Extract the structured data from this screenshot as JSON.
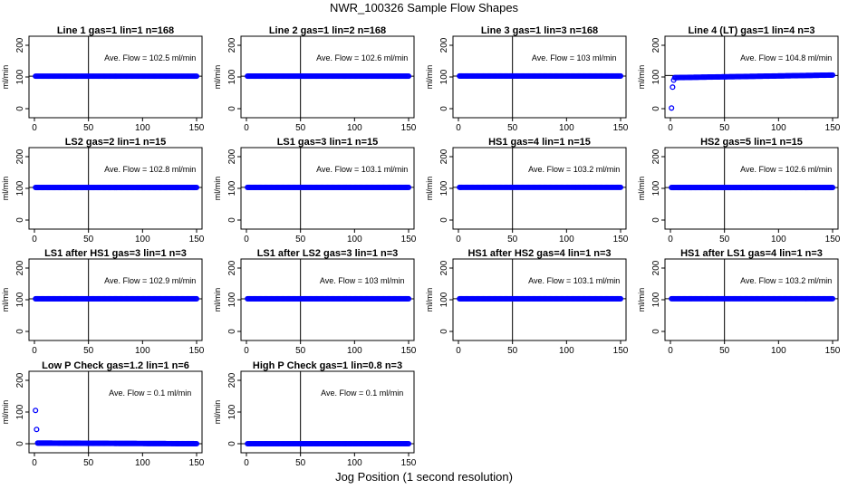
{
  "figure": {
    "title": "NWR_100326  Sample Flow Shapes",
    "xlabel": "Jog Position (1 second resolution)"
  },
  "chart_data": [
    {
      "type": "scatter",
      "title": "Line 1 gas=1 lin=1 n=168",
      "ylabel": "ml/min",
      "annotation": "Ave. Flow =  102.5  ml/min",
      "xlim": [
        0,
        150
      ],
      "ylim": [
        0,
        200
      ],
      "xticks": [
        0,
        50,
        100,
        150
      ],
      "yticks": [
        0,
        100,
        200
      ],
      "vline": 50,
      "hline": 102.5,
      "series": [
        {
          "x": [
            1,
            150
          ],
          "y": [
            102.5,
            102.5
          ],
          "dense_line": true
        }
      ]
    },
    {
      "type": "scatter",
      "title": "Line 2 gas=1 lin=2 n=168",
      "ylabel": "ml/min",
      "annotation": "Ave. Flow =  102.6  ml/min",
      "xlim": [
        0,
        150
      ],
      "ylim": [
        0,
        200
      ],
      "xticks": [
        0,
        50,
        100,
        150
      ],
      "yticks": [
        0,
        100,
        200
      ],
      "vline": 50,
      "hline": 102.6,
      "series": [
        {
          "x": [
            1,
            150
          ],
          "y": [
            102.6,
            102.6
          ],
          "dense_line": true
        }
      ]
    },
    {
      "type": "scatter",
      "title": "Line 3 gas=1 lin=3 n=168",
      "ylabel": "ml/min",
      "annotation": "Ave. Flow =  103  ml/min",
      "xlim": [
        0,
        150
      ],
      "ylim": [
        0,
        200
      ],
      "xticks": [
        0,
        50,
        100,
        150
      ],
      "yticks": [
        0,
        100,
        200
      ],
      "vline": 50,
      "hline": 103,
      "series": [
        {
          "x": [
            1,
            150
          ],
          "y": [
            103,
            103
          ],
          "dense_line": true
        }
      ]
    },
    {
      "type": "scatter",
      "title": "Line 4 (LT) gas=1 lin=4 n=3",
      "ylabel": "ml/min",
      "annotation": "Ave. Flow =  104.8  ml/min",
      "xlim": [
        0,
        150
      ],
      "ylim": [
        0,
        200
      ],
      "xticks": [
        0,
        50,
        100,
        150
      ],
      "yticks": [
        0,
        100,
        200
      ],
      "vline": 50,
      "hline": 104.8,
      "series": [
        {
          "x": [
            1,
            2,
            3,
            4,
            150
          ],
          "y": [
            2,
            68,
            90,
            98,
            106
          ],
          "dense_from": 4
        }
      ]
    },
    {
      "type": "scatter",
      "title": "LS2 gas=2 lin=1 n=15",
      "ylabel": "ml/min",
      "annotation": "Ave. Flow =  102.8  ml/min",
      "xlim": [
        0,
        150
      ],
      "ylim": [
        0,
        200
      ],
      "xticks": [
        0,
        50,
        100,
        150
      ],
      "yticks": [
        0,
        100,
        200
      ],
      "vline": 50,
      "hline": 102.8,
      "series": [
        {
          "x": [
            1,
            150
          ],
          "y": [
            102.8,
            102.8
          ],
          "dense_line": true
        }
      ]
    },
    {
      "type": "scatter",
      "title": "LS1 gas=3 lin=1 n=15",
      "ylabel": "ml/min",
      "annotation": "Ave. Flow =  103.1  ml/min",
      "xlim": [
        0,
        150
      ],
      "ylim": [
        0,
        200
      ],
      "xticks": [
        0,
        50,
        100,
        150
      ],
      "yticks": [
        0,
        100,
        200
      ],
      "vline": 50,
      "hline": 103.1,
      "series": [
        {
          "x": [
            1,
            150
          ],
          "y": [
            103.1,
            103.1
          ],
          "dense_line": true
        }
      ]
    },
    {
      "type": "scatter",
      "title": "HS1 gas=4 lin=1 n=15",
      "ylabel": "ml/min",
      "annotation": "Ave. Flow =  103.2  ml/min",
      "xlim": [
        0,
        150
      ],
      "ylim": [
        0,
        200
      ],
      "xticks": [
        0,
        50,
        100,
        150
      ],
      "yticks": [
        0,
        100,
        200
      ],
      "vline": 50,
      "hline": 103.2,
      "series": [
        {
          "x": [
            1,
            150
          ],
          "y": [
            103.2,
            103.2
          ],
          "dense_line": true
        }
      ]
    },
    {
      "type": "scatter",
      "title": "HS2 gas=5 lin=1 n=15",
      "ylabel": "ml/min",
      "annotation": "Ave. Flow =  102.6  ml/min",
      "xlim": [
        0,
        150
      ],
      "ylim": [
        0,
        200
      ],
      "xticks": [
        0,
        50,
        100,
        150
      ],
      "yticks": [
        0,
        100,
        200
      ],
      "vline": 50,
      "hline": 102.6,
      "series": [
        {
          "x": [
            1,
            150
          ],
          "y": [
            102.6,
            102.6
          ],
          "dense_line": true
        }
      ]
    },
    {
      "type": "scatter",
      "title": "LS1 after HS1 gas=3 lin=1 n=3",
      "ylabel": "ml/min",
      "annotation": "Ave. Flow =  102.9  ml/min",
      "xlim": [
        0,
        150
      ],
      "ylim": [
        0,
        200
      ],
      "xticks": [
        0,
        50,
        100,
        150
      ],
      "yticks": [
        0,
        100,
        200
      ],
      "vline": 50,
      "hline": 102.9,
      "series": [
        {
          "x": [
            1,
            150
          ],
          "y": [
            102.9,
            102.9
          ],
          "dense_line": true
        }
      ]
    },
    {
      "type": "scatter",
      "title": "LS1 after LS2 gas=3 lin=1 n=3",
      "ylabel": "ml/min",
      "annotation": "Ave. Flow =  103  ml/min",
      "xlim": [
        0,
        150
      ],
      "ylim": [
        0,
        200
      ],
      "xticks": [
        0,
        50,
        100,
        150
      ],
      "yticks": [
        0,
        100,
        200
      ],
      "vline": 50,
      "hline": 103,
      "series": [
        {
          "x": [
            1,
            150
          ],
          "y": [
            103,
            103
          ],
          "dense_line": true
        }
      ]
    },
    {
      "type": "scatter",
      "title": "HS1 after HS2 gas=4 lin=1 n=3",
      "ylabel": "ml/min",
      "annotation": "Ave. Flow =  103.1  ml/min",
      "xlim": [
        0,
        150
      ],
      "ylim": [
        0,
        200
      ],
      "xticks": [
        0,
        50,
        100,
        150
      ],
      "yticks": [
        0,
        100,
        200
      ],
      "vline": 50,
      "hline": 103.1,
      "series": [
        {
          "x": [
            1,
            150
          ],
          "y": [
            103.1,
            103.1
          ],
          "dense_line": true
        }
      ]
    },
    {
      "type": "scatter",
      "title": "HS1 after LS1 gas=4 lin=1 n=3",
      "ylabel": "ml/min",
      "annotation": "Ave. Flow =  103.2  ml/min",
      "xlim": [
        0,
        150
      ],
      "ylim": [
        0,
        200
      ],
      "xticks": [
        0,
        50,
        100,
        150
      ],
      "yticks": [
        0,
        100,
        200
      ],
      "vline": 50,
      "hline": 103.2,
      "series": [
        {
          "x": [
            1,
            150
          ],
          "y": [
            103.2,
            103.2
          ],
          "dense_line": true
        }
      ]
    },
    {
      "type": "scatter",
      "title": "Low P Check gas=1.2 lin=1 n=6",
      "ylabel": "ml/min",
      "annotation": "Ave. Flow =  0.1  ml/min",
      "xlim": [
        0,
        150
      ],
      "ylim": [
        0,
        200
      ],
      "xticks": [
        0,
        50,
        100,
        150
      ],
      "yticks": [
        0,
        100,
        200
      ],
      "vline": 50,
      "hline": 0.1,
      "series": [
        {
          "x": [
            1,
            2,
            3,
            150
          ],
          "y": [
            105,
            45,
            2,
            0
          ],
          "dense_from": 3
        }
      ]
    },
    {
      "type": "scatter",
      "title": "High P Check gas=1 lin=0.8 n=3",
      "ylabel": "ml/min",
      "annotation": "Ave. Flow =  0.1  ml/min",
      "xlim": [
        0,
        150
      ],
      "ylim": [
        0,
        200
      ],
      "xticks": [
        0,
        50,
        100,
        150
      ],
      "yticks": [
        0,
        100,
        200
      ],
      "vline": 50,
      "hline": 0.1,
      "series": [
        {
          "x": [
            1,
            150
          ],
          "y": [
            0,
            0
          ],
          "dense_line": true
        }
      ]
    }
  ],
  "style": {
    "point_color": "#0000ff",
    "line_color": "#000000"
  }
}
